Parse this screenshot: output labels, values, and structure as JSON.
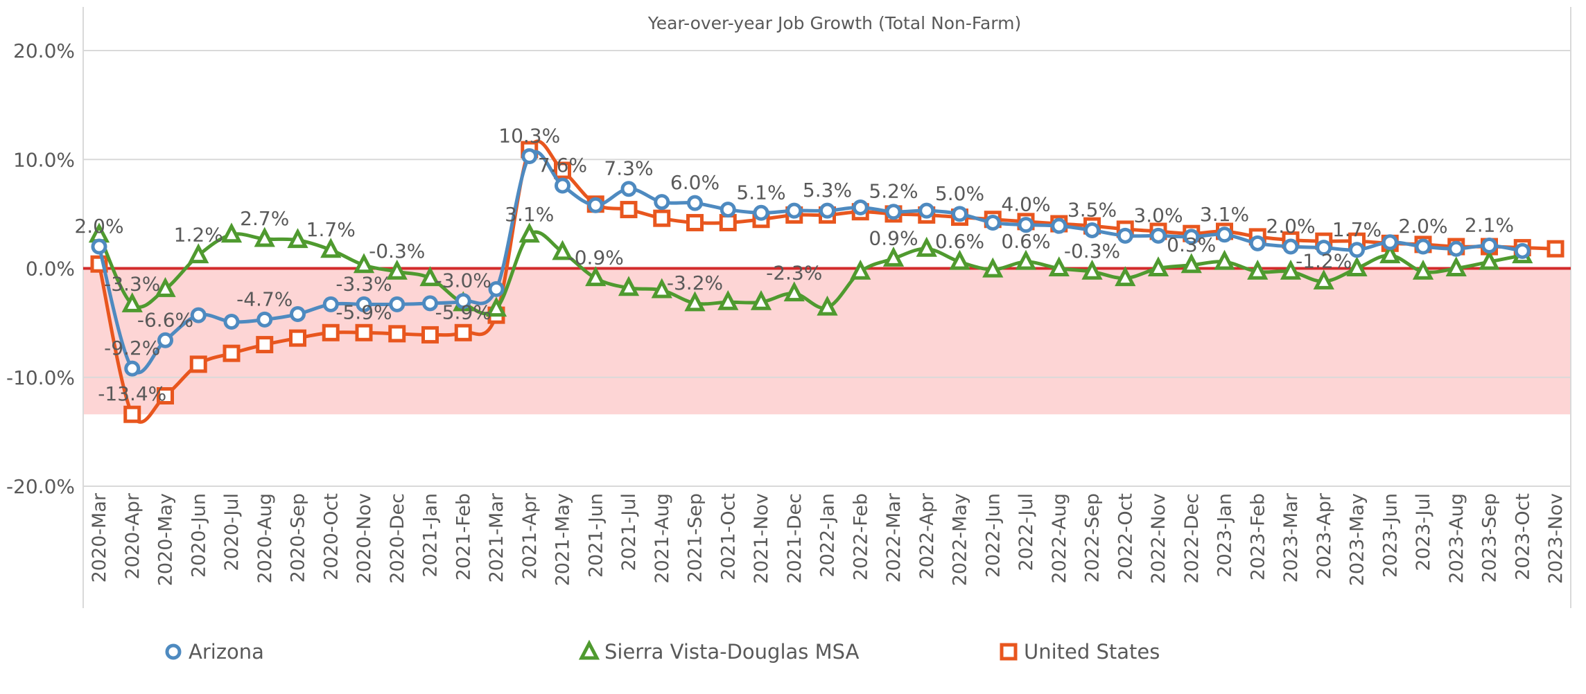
{
  "chart_data": {
    "type": "line",
    "title": "Year-over-year Job Growth (Total Non-Farm)",
    "ylim": [
      -20,
      20
    ],
    "yticks": [
      "20.0%",
      "10.0%",
      "0.0%",
      "-10.0%",
      "-20.0%"
    ],
    "ytick_values": [
      20,
      10,
      0,
      -10,
      -20
    ],
    "grid": true,
    "legend_placement": "bottom",
    "shaded_band": {
      "from": -13.4,
      "to": 0,
      "color": "#fdd5d5"
    },
    "zero_line_color": "#d22b2b",
    "categories": [
      "2020-Mar",
      "2020-Apr",
      "2020-May",
      "2020-Jun",
      "2020-Jul",
      "2020-Aug",
      "2020-Sep",
      "2020-Oct",
      "2020-Nov",
      "2020-Dec",
      "2021-Jan",
      "2021-Feb",
      "2021-Mar",
      "2021-Apr",
      "2021-May",
      "2021-Jun",
      "2021-Jul",
      "2021-Aug",
      "2021-Sep",
      "2021-Oct",
      "2021-Nov",
      "2021-Dec",
      "2022-Jan",
      "2022-Feb",
      "2022-Mar",
      "2022-Apr",
      "2022-May",
      "2022-Jun",
      "2022-Jul",
      "2022-Aug",
      "2022-Sep",
      "2022-Oct",
      "2022-Nov",
      "2022-Dec",
      "2023-Jan",
      "2023-Feb",
      "2023-Mar",
      "2023-Apr",
      "2023-May",
      "2023-Jun",
      "2023-Jul",
      "2023-Aug",
      "2023-Sep",
      "2023-Oct",
      "2023-Nov"
    ],
    "series": [
      {
        "name": "Arizona",
        "color": "#4e8ac0",
        "marker": "circle",
        "values": [
          2.0,
          -9.2,
          -6.6,
          -4.3,
          -4.9,
          -4.7,
          -4.2,
          -3.3,
          -3.3,
          -3.3,
          -3.2,
          -3.0,
          -1.9,
          10.3,
          7.6,
          5.8,
          7.3,
          6.1,
          6.0,
          5.4,
          5.1,
          5.3,
          5.3,
          5.6,
          5.2,
          5.3,
          5.0,
          4.2,
          4.0,
          3.9,
          3.5,
          3.0,
          3.0,
          2.9,
          3.1,
          2.3,
          2.0,
          1.9,
          1.7,
          2.4,
          2.0,
          1.8,
          2.1,
          1.6,
          null
        ]
      },
      {
        "name": "Sierra Vista-Douglas MSA",
        "color": "#4f9a2f",
        "marker": "triangle",
        "values": [
          3.1,
          -3.3,
          -1.9,
          1.2,
          3.1,
          2.7,
          2.6,
          1.7,
          0.3,
          -0.3,
          -0.9,
          -3.2,
          -3.7,
          3.1,
          1.5,
          -0.9,
          -1.8,
          -2.0,
          -3.2,
          -3.1,
          -3.1,
          -2.3,
          -3.6,
          -0.3,
          0.9,
          1.8,
          0.6,
          -0.1,
          0.6,
          0.0,
          -0.3,
          -0.9,
          0.0,
          0.3,
          0.6,
          -0.3,
          -0.3,
          -1.2,
          0.0,
          1.2,
          -0.3,
          0.0,
          0.6,
          1.2,
          null
        ]
      },
      {
        "name": "United States",
        "color": "#e8561e",
        "marker": "square",
        "values": [
          0.4,
          -13.4,
          -11.7,
          -8.8,
          -7.8,
          -7.0,
          -6.4,
          -5.9,
          -5.9,
          -6.0,
          -6.1,
          -5.9,
          -4.3,
          10.9,
          9.0,
          5.9,
          5.4,
          4.6,
          4.2,
          4.2,
          4.5,
          4.9,
          4.9,
          5.2,
          5.0,
          4.9,
          4.7,
          4.5,
          4.3,
          4.1,
          3.9,
          3.6,
          3.4,
          3.2,
          3.4,
          2.9,
          2.6,
          2.5,
          2.5,
          2.3,
          2.2,
          2.0,
          2.0,
          1.9,
          1.8
        ]
      }
    ],
    "data_labels": [
      {
        "series": 0,
        "index": 0,
        "text": "2.0%"
      },
      {
        "series": 1,
        "index": 1,
        "text": "-3.3%"
      },
      {
        "series": 0,
        "index": 1,
        "text": "-9.2%"
      },
      {
        "series": 2,
        "index": 1,
        "text": "-13.4%"
      },
      {
        "series": 0,
        "index": 2,
        "text": "-6.6%"
      },
      {
        "series": 1,
        "index": 3,
        "text": "1.2%"
      },
      {
        "series": 1,
        "index": 5,
        "text": "2.7%"
      },
      {
        "series": 0,
        "index": 5,
        "text": "-4.7%"
      },
      {
        "series": 1,
        "index": 7,
        "text": "1.7%"
      },
      {
        "series": 0,
        "index": 8,
        "text": "-3.3%"
      },
      {
        "series": 2,
        "index": 8,
        "text": "-5.9%"
      },
      {
        "series": 1,
        "index": 9,
        "text": "-0.3%"
      },
      {
        "series": 0,
        "index": 11,
        "text": "-3.0%"
      },
      {
        "series": 2,
        "index": 11,
        "text": "-5.9%"
      },
      {
        "series": 0,
        "index": 13,
        "text": "10.3%"
      },
      {
        "series": 1,
        "index": 13,
        "text": "3.1%"
      },
      {
        "series": 0,
        "index": 14,
        "text": "7.6%"
      },
      {
        "series": 1,
        "index": 15,
        "text": "-0.9%"
      },
      {
        "series": 0,
        "index": 16,
        "text": "7.3%"
      },
      {
        "series": 0,
        "index": 18,
        "text": "6.0%"
      },
      {
        "series": 1,
        "index": 18,
        "text": "-3.2%"
      },
      {
        "series": 0,
        "index": 20,
        "text": "5.1%"
      },
      {
        "series": 1,
        "index": 21,
        "text": "-2.3%"
      },
      {
        "series": 0,
        "index": 22,
        "text": "5.3%"
      },
      {
        "series": 0,
        "index": 24,
        "text": "5.2%"
      },
      {
        "series": 1,
        "index": 24,
        "text": "0.9%"
      },
      {
        "series": 0,
        "index": 26,
        "text": "5.0%"
      },
      {
        "series": 1,
        "index": 26,
        "text": "0.6%"
      },
      {
        "series": 0,
        "index": 28,
        "text": "4.0%"
      },
      {
        "series": 1,
        "index": 28,
        "text": "0.6%"
      },
      {
        "series": 0,
        "index": 30,
        "text": "3.5%"
      },
      {
        "series": 1,
        "index": 30,
        "text": "-0.3%"
      },
      {
        "series": 0,
        "index": 32,
        "text": "3.0%"
      },
      {
        "series": 1,
        "index": 33,
        "text": "0.3%"
      },
      {
        "series": 0,
        "index": 34,
        "text": "3.1%"
      },
      {
        "series": 0,
        "index": 36,
        "text": "2.0%"
      },
      {
        "series": 1,
        "index": 37,
        "text": "-1.2%"
      },
      {
        "series": 0,
        "index": 38,
        "text": "1.7%"
      },
      {
        "series": 0,
        "index": 40,
        "text": "2.0%"
      },
      {
        "series": 0,
        "index": 42,
        "text": "2.1%"
      }
    ]
  }
}
